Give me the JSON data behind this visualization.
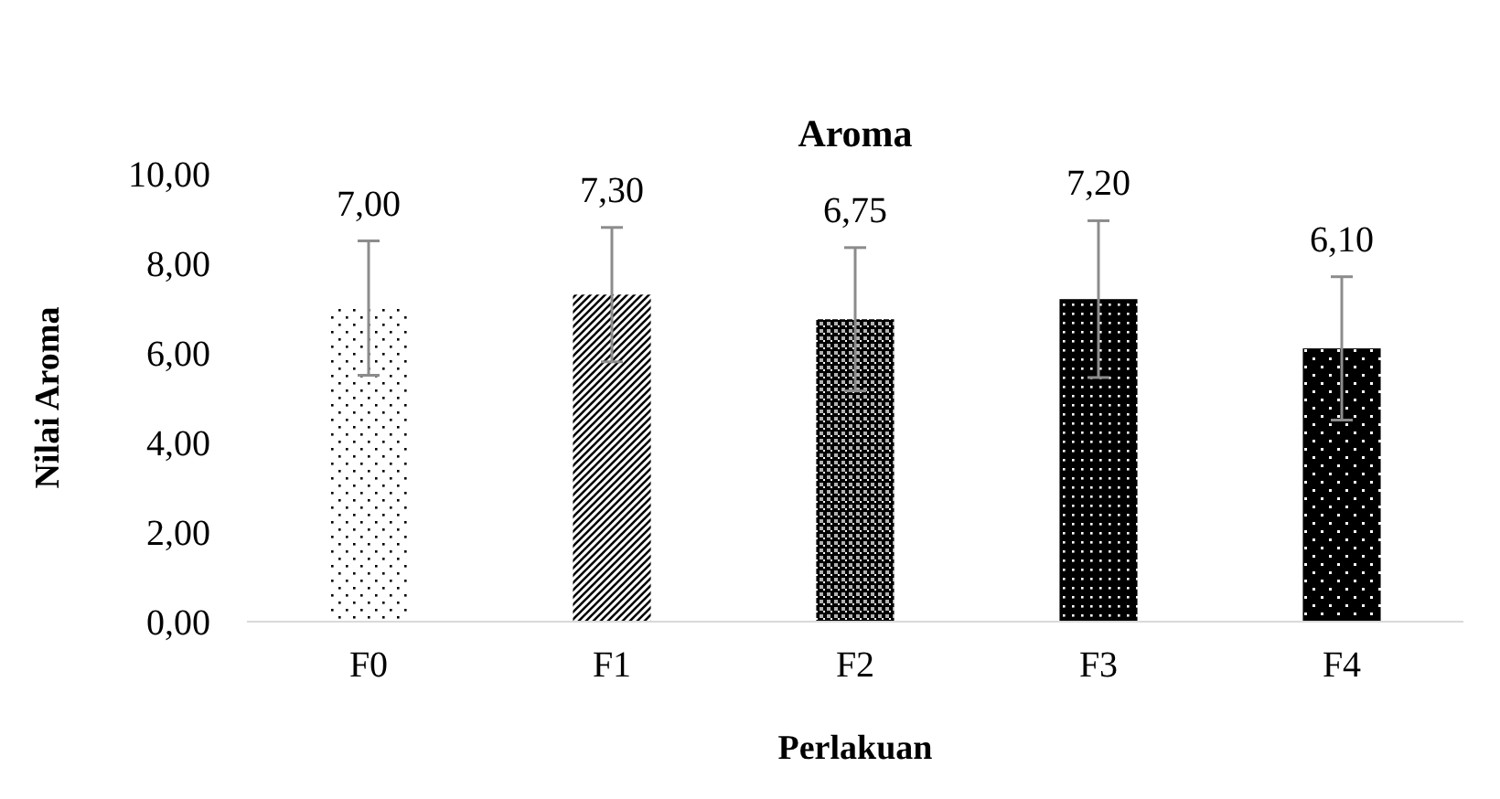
{
  "chart_data": {
    "type": "bar",
    "title": "Aroma",
    "xlabel": "Perlakuan",
    "ylabel": "Nilai Aroma",
    "categories": [
      "F0",
      "F1",
      "F2",
      "F3",
      "F4"
    ],
    "values": [
      7.0,
      7.3,
      6.75,
      7.2,
      6.1
    ],
    "value_labels": [
      "7,00",
      "7,30",
      "6,75",
      "7,20",
      "6,10"
    ],
    "errors": [
      1.5,
      1.5,
      1.6,
      1.75,
      1.6
    ],
    "color": "#000000",
    "ylim": [
      0,
      10
    ],
    "yticks": [
      {
        "value": 0,
        "label": "0,00"
      },
      {
        "value": 2,
        "label": "2,00"
      },
      {
        "value": 4,
        "label": "4,00"
      },
      {
        "value": 6,
        "label": "6,00"
      },
      {
        "value": 8,
        "label": "8,00"
      },
      {
        "value": 10,
        "label": "10,00"
      }
    ],
    "grid": false
  }
}
